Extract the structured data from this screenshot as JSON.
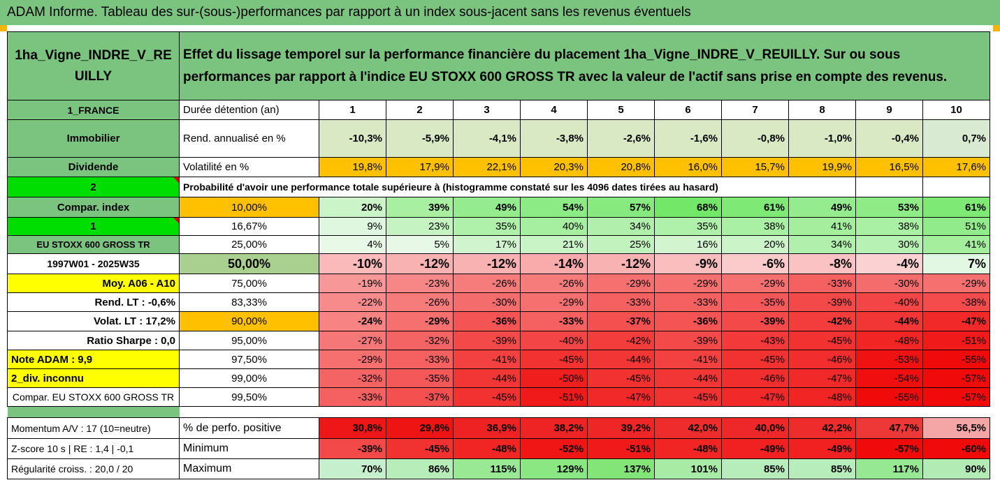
{
  "title": "ADAM Informe. Tableau des sur-(sous-)performances par rapport à un index sous-jacent sans les revenus éventuels",
  "asset_name": "1ha_Vigne_INDRE_V_REUILLY",
  "description": "Effet du lissage temporel sur la performance financière du placement 1ha_Vigne_INDRE_V_REUILLY. Sur ou sous performances par rapport à l'indice EU STOXX 600 GROSS TR avec la valeur de l'actif sans prise en compte des revenus.",
  "left_labels": {
    "country": "1_FRANCE",
    "type": "Immobilier",
    "dividend": "Dividende",
    "two": "2",
    "compar_index": "Compar. index",
    "one": "1",
    "index_name": "EU STOXX 600 GROSS TR",
    "period": "1997W01 - 2025W35",
    "moy": "Moy. A06 - A10",
    "rend_lt": "Rend. LT :   -0,6%",
    "volat_lt": "Volat. LT :   17,2%",
    "sharpe": "Ratio Sharpe :    0,0",
    "note": "Note ADAM : 9,9",
    "div": "2_div. inconnu",
    "compar2": "Compar. EU STOXX 600 GROSS TR",
    "momentum": "Momentum A/V : 17 (10=neutre)",
    "zscore": "Z-score 10 s  |  RE : 1,4  |  -0,1",
    "regularite": "Régularité croiss. : 20,0 / 20"
  },
  "row_labels": {
    "duree": "Durée détention (an)",
    "rend": "Rend. annualisé en %",
    "volat": "Volatilité en %",
    "proba": "Probabilité d'avoir une performance totale supérieure à (histogramme constaté sur les 4096 dates tirées au hasard)",
    "pos": "% de perfo. positive",
    "min": "Minimum",
    "max": "Maximum"
  },
  "years": [
    "1",
    "2",
    "3",
    "4",
    "5",
    "6",
    "7",
    "8",
    "9",
    "10"
  ],
  "rend": [
    "-10,3%",
    "-5,9%",
    "-4,1%",
    "-3,8%",
    "-2,6%",
    "-1,6%",
    "-0,8%",
    "-1,0%",
    "-0,4%",
    "0,7%"
  ],
  "volat": [
    "19,8%",
    "17,9%",
    "22,1%",
    "20,3%",
    "20,8%",
    "16,0%",
    "15,7%",
    "19,9%",
    "16,5%",
    "17,6%"
  ],
  "quantiles": [
    {
      "q": "10,00%",
      "v": [
        "20%",
        "39%",
        "49%",
        "54%",
        "57%",
        "68%",
        "61%",
        "49%",
        "53%",
        "61%"
      ]
    },
    {
      "q": "16,67%",
      "v": [
        "9%",
        "23%",
        "35%",
        "40%",
        "34%",
        "35%",
        "38%",
        "41%",
        "38%",
        "51%"
      ]
    },
    {
      "q": "25,00%",
      "v": [
        "4%",
        "5%",
        "17%",
        "21%",
        "25%",
        "16%",
        "20%",
        "34%",
        "30%",
        "41%"
      ]
    },
    {
      "q": "50,00%",
      "v": [
        "-10%",
        "-12%",
        "-12%",
        "-14%",
        "-12%",
        "-9%",
        "-6%",
        "-8%",
        "-4%",
        "7%"
      ]
    },
    {
      "q": "75,00%",
      "v": [
        "-19%",
        "-23%",
        "-26%",
        "-26%",
        "-29%",
        "-29%",
        "-29%",
        "-33%",
        "-30%",
        "-29%"
      ]
    },
    {
      "q": "83,33%",
      "v": [
        "-22%",
        "-26%",
        "-30%",
        "-29%",
        "-33%",
        "-33%",
        "-35%",
        "-39%",
        "-40%",
        "-38%"
      ]
    },
    {
      "q": "90,00%",
      "v": [
        "-24%",
        "-29%",
        "-36%",
        "-33%",
        "-37%",
        "-36%",
        "-39%",
        "-42%",
        "-44%",
        "-47%"
      ]
    },
    {
      "q": "95,00%",
      "v": [
        "-27%",
        "-32%",
        "-39%",
        "-40%",
        "-42%",
        "-39%",
        "-43%",
        "-45%",
        "-48%",
        "-51%"
      ]
    },
    {
      "q": "97,50%",
      "v": [
        "-29%",
        "-33%",
        "-41%",
        "-45%",
        "-44%",
        "-41%",
        "-45%",
        "-46%",
        "-53%",
        "-55%"
      ]
    },
    {
      "q": "99,00%",
      "v": [
        "-32%",
        "-35%",
        "-44%",
        "-50%",
        "-45%",
        "-44%",
        "-46%",
        "-47%",
        "-54%",
        "-57%"
      ]
    },
    {
      "q": "99,50%",
      "v": [
        "-33%",
        "-37%",
        "-45%",
        "-51%",
        "-47%",
        "-45%",
        "-47%",
        "-48%",
        "-55%",
        "-57%"
      ]
    }
  ],
  "pos": [
    "30,8%",
    "29,8%",
    "36,9%",
    "38,2%",
    "39,2%",
    "42,0%",
    "40,0%",
    "42,2%",
    "47,7%",
    "56,5%"
  ],
  "min": [
    "-39%",
    "-45%",
    "-48%",
    "-52%",
    "-51%",
    "-48%",
    "-49%",
    "-49%",
    "-57%",
    "-60%"
  ],
  "max": [
    "70%",
    "86%",
    "115%",
    "129%",
    "137%",
    "101%",
    "85%",
    "85%",
    "117%",
    "90%"
  ],
  "colors": {
    "header_green": "#7bc47f",
    "yellow": "#ffff00",
    "bright_green": "#00dd00",
    "orange": "#ffc000",
    "red_text": "#e00000"
  }
}
